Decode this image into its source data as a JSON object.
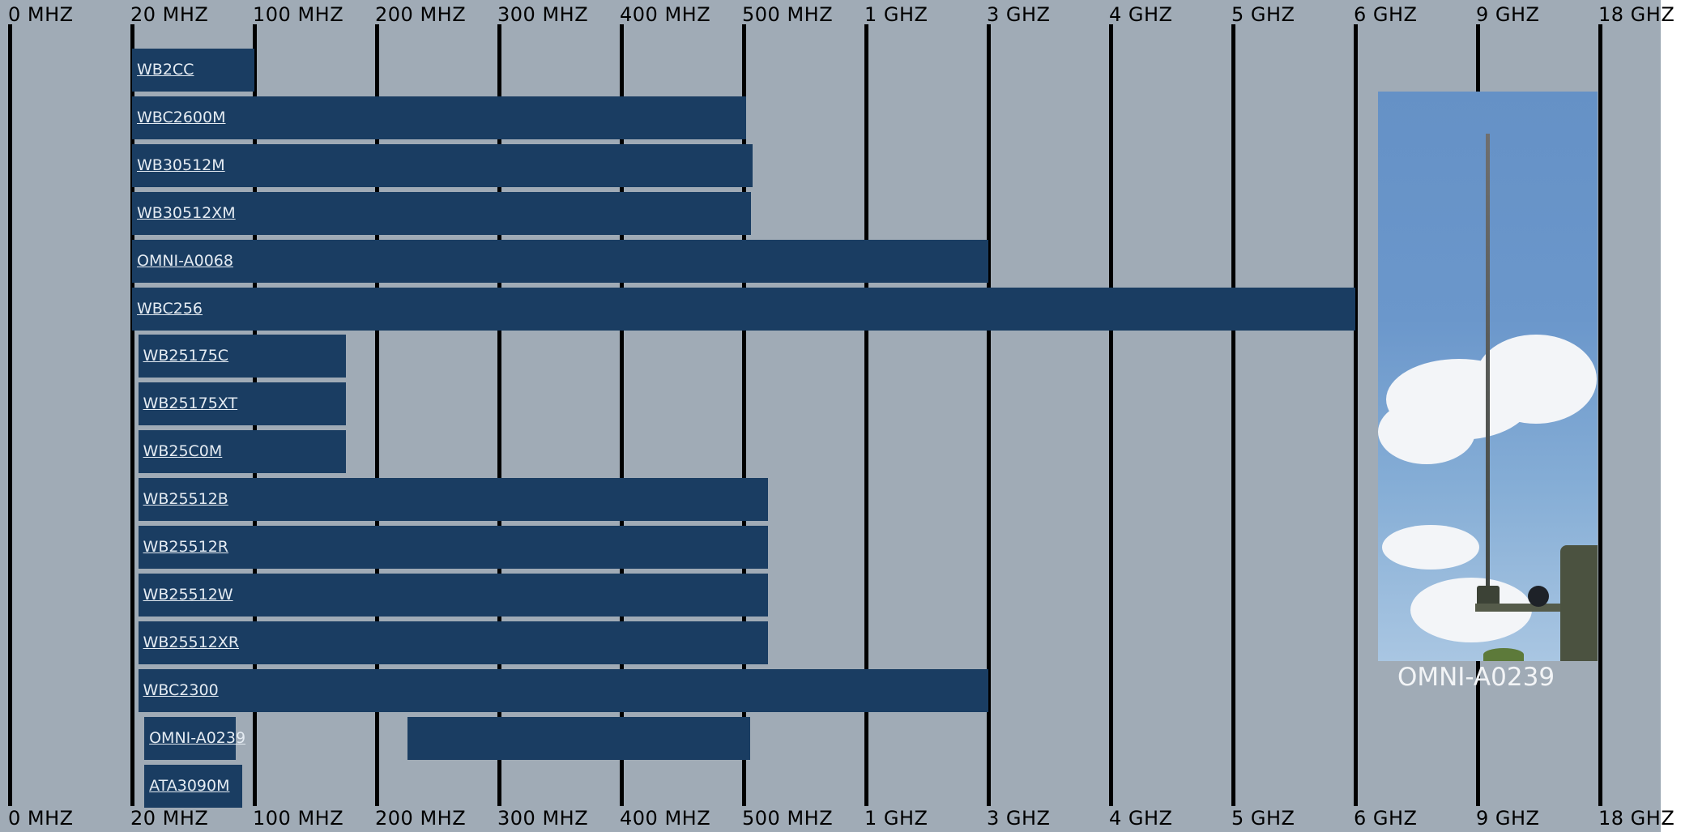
{
  "chart_data": {
    "type": "bar",
    "orientation": "horizontal",
    "title": "",
    "xlabel": "",
    "ylabel": "",
    "x_axis": {
      "scale": "categorical-band",
      "ticks": [
        "0 MHZ",
        "20 MHZ",
        "100 MHZ",
        "200 MHZ",
        "300 MHZ",
        "400 MHZ",
        "500 MHZ",
        "1 GHZ",
        "3 GHZ",
        "4 GHZ",
        "5 GHZ",
        "6 GHZ",
        "9 GHZ",
        "18 GHZ"
      ],
      "positions": [
        "top",
        "bottom"
      ]
    },
    "grid": true,
    "legend": "none",
    "bar_color": "#1a3d62",
    "background_color": "#a0abb6",
    "series": [
      {
        "label": "WB2CC",
        "ranges": [
          [
            1.0,
            2.0
          ]
        ]
      },
      {
        "label": "WBC2600M",
        "ranges": [
          [
            1.0,
            6.02
          ]
        ]
      },
      {
        "label": "WB30512M",
        "ranges": [
          [
            1.0,
            6.07
          ]
        ]
      },
      {
        "label": "WB30512XM",
        "ranges": [
          [
            1.0,
            6.06
          ]
        ]
      },
      {
        "label": "OMNI-A0068",
        "ranges": [
          [
            1.0,
            8.0
          ]
        ]
      },
      {
        "label": "WBC256",
        "ranges": [
          [
            1.0,
            11.0
          ]
        ]
      },
      {
        "label": "WB25175C",
        "ranges": [
          [
            1.05,
            2.75
          ]
        ]
      },
      {
        "label": "WB25175XT",
        "ranges": [
          [
            1.05,
            2.75
          ]
        ]
      },
      {
        "label": "WB25C0M",
        "ranges": [
          [
            1.05,
            2.75
          ]
        ]
      },
      {
        "label": "WB25512B",
        "ranges": [
          [
            1.05,
            6.2
          ]
        ]
      },
      {
        "label": "WB25512R",
        "ranges": [
          [
            1.05,
            6.2
          ]
        ]
      },
      {
        "label": "WB25512W",
        "ranges": [
          [
            1.05,
            6.2
          ]
        ]
      },
      {
        "label": "WB25512XR",
        "ranges": [
          [
            1.05,
            6.2
          ]
        ]
      },
      {
        "label": "WBC2300",
        "ranges": [
          [
            1.05,
            8.0
          ]
        ]
      },
      {
        "label": "OMNI-A0239",
        "ranges": [
          [
            1.1,
            1.85
          ],
          [
            3.25,
            6.05
          ]
        ]
      },
      {
        "label": "ATA3090M",
        "ranges": [
          [
            1.1,
            1.9
          ]
        ]
      }
    ]
  },
  "photo": {
    "caption": "OMNI-A0239",
    "caption_color": "#f2f4f6",
    "sky_color": "#6591c6"
  }
}
